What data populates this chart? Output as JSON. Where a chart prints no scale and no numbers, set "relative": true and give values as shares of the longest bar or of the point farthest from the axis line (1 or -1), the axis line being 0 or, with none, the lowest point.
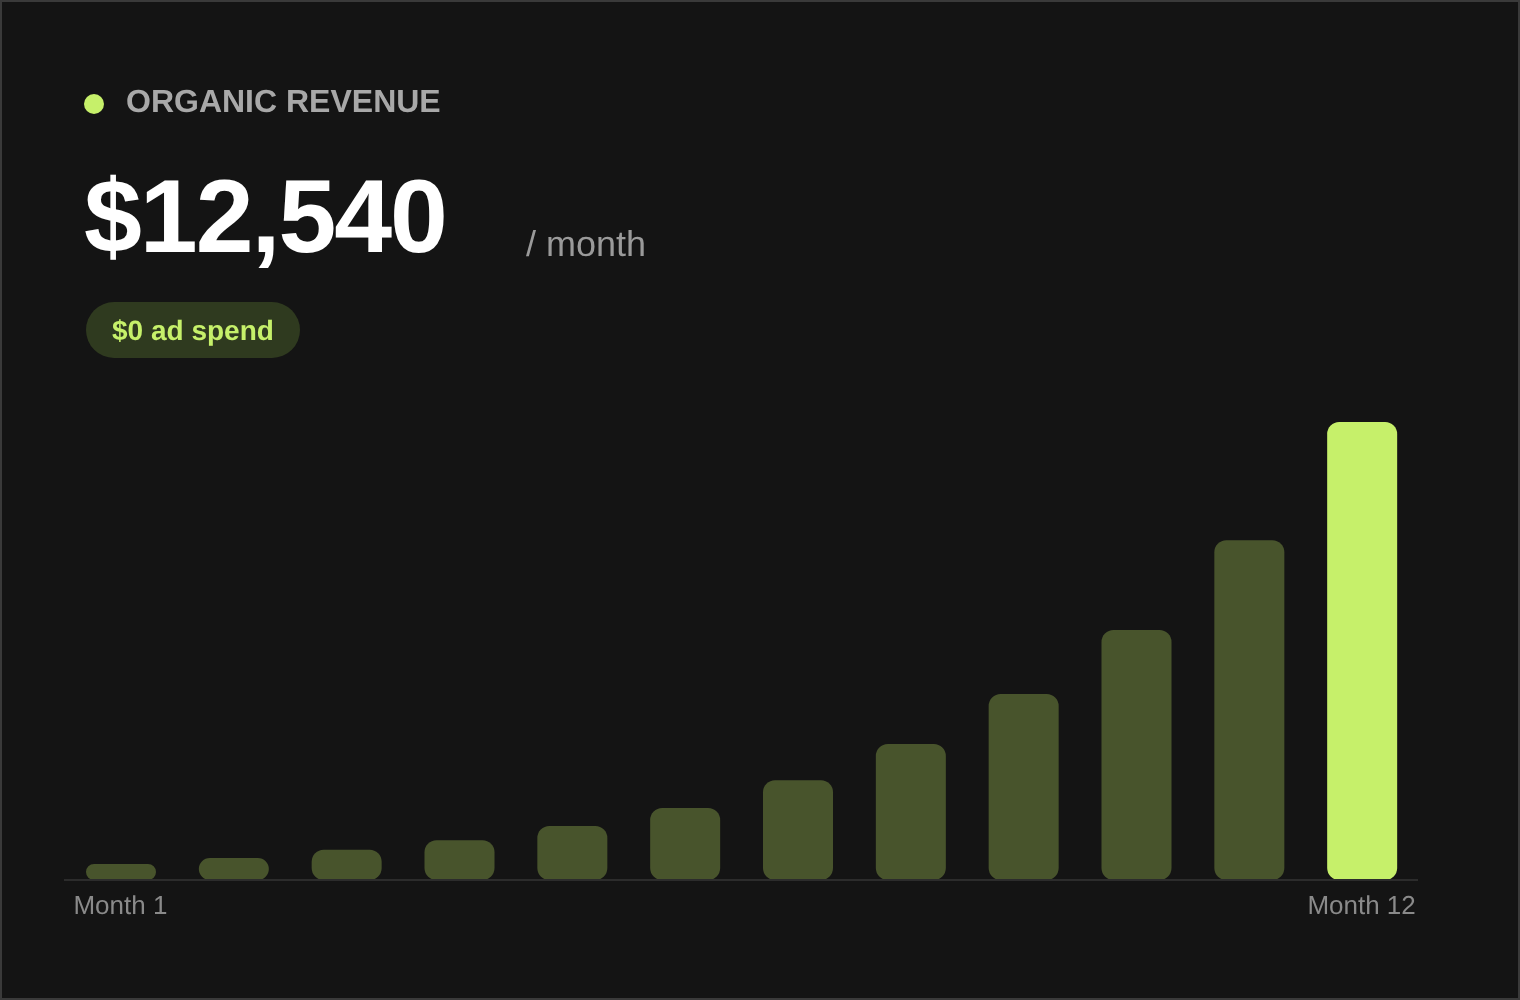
{
  "chart_data": {
    "type": "bar",
    "title": "ORGANIC REVENUE",
    "subtitle": "$12,540",
    "annotations": [
      "/ month",
      "$0 ad spend"
    ],
    "categories": [
      "Month 1",
      null,
      null,
      null,
      null,
      null,
      null,
      null,
      null,
      null,
      null,
      "Month 12"
    ],
    "values": [
      0.035,
      0.048,
      0.066,
      0.087,
      0.118,
      0.157,
      0.218,
      0.297,
      0.406,
      0.546,
      0.742,
      1
    ],
    "colors": [
      "#48542c",
      "#48542c",
      "#48542c",
      "#48542c",
      "#48542c",
      "#48542c",
      "#48542c",
      "#48542c",
      "#48542c",
      "#48542c",
      "#48542c",
      "#c6f06a"
    ],
    "relative": true,
    "grid": false,
    "legend": false
  }
}
